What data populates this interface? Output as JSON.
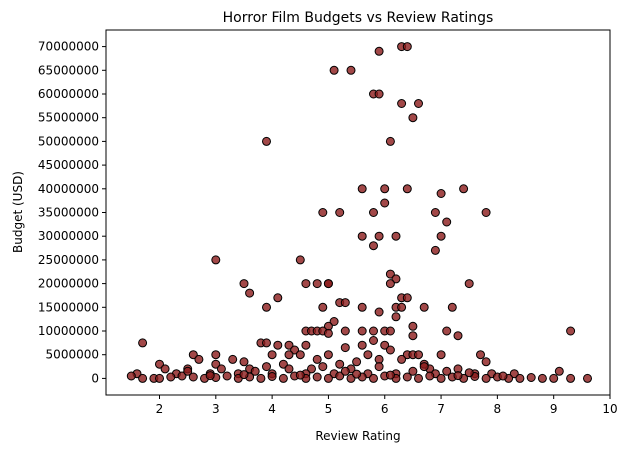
{
  "chart_data": {
    "type": "scatter",
    "title": "Horror Film Budgets vs Review Ratings",
    "xlabel": "Review Rating",
    "ylabel": "Budget (USD)",
    "xlim": [
      1.05,
      10.0
    ],
    "ylim": [
      -3500000,
      73500000
    ],
    "xticks": [
      2,
      3,
      4,
      5,
      6,
      7,
      8,
      9,
      10
    ],
    "xtick_labels": [
      "2",
      "3",
      "4",
      "5",
      "6",
      "7",
      "8",
      "9",
      "10"
    ],
    "yticks": [
      0,
      5000000,
      10000000,
      15000000,
      20000000,
      25000000,
      30000000,
      35000000,
      40000000,
      45000000,
      50000000,
      55000000,
      60000000,
      65000000,
      70000000
    ],
    "ytick_labels": [
      "0",
      "5000000",
      "10000000",
      "15000000",
      "20000000",
      "25000000",
      "30000000",
      "35000000",
      "40000000",
      "45000000",
      "50000000",
      "55000000",
      "60000000",
      "65000000",
      "70000000"
    ],
    "grid": false,
    "legend": "none",
    "marker_color": "#8b1a1a",
    "marker_edge_color": "#000000",
    "points": [
      {
        "x": 6.3,
        "y": 70000000
      },
      {
        "x": 6.4,
        "y": 70000000
      },
      {
        "x": 5.9,
        "y": 69000000
      },
      {
        "x": 5.1,
        "y": 65000000
      },
      {
        "x": 5.4,
        "y": 65000000
      },
      {
        "x": 5.8,
        "y": 60000000
      },
      {
        "x": 5.9,
        "y": 60000000
      },
      {
        "x": 6.3,
        "y": 58000000
      },
      {
        "x": 6.6,
        "y": 58000000
      },
      {
        "x": 6.5,
        "y": 55000000
      },
      {
        "x": 3.9,
        "y": 50000000
      },
      {
        "x": 6.1,
        "y": 50000000
      },
      {
        "x": 5.6,
        "y": 40000000
      },
      {
        "x": 6.0,
        "y": 40000000
      },
      {
        "x": 6.4,
        "y": 40000000
      },
      {
        "x": 7.4,
        "y": 40000000
      },
      {
        "x": 7.0,
        "y": 39000000
      },
      {
        "x": 6.0,
        "y": 37000000
      },
      {
        "x": 4.9,
        "y": 35000000
      },
      {
        "x": 5.2,
        "y": 35000000
      },
      {
        "x": 5.8,
        "y": 35000000
      },
      {
        "x": 6.9,
        "y": 35000000
      },
      {
        "x": 7.8,
        "y": 35000000
      },
      {
        "x": 7.1,
        "y": 33000000
      },
      {
        "x": 5.6,
        "y": 30000000
      },
      {
        "x": 5.9,
        "y": 30000000
      },
      {
        "x": 6.2,
        "y": 30000000
      },
      {
        "x": 7.0,
        "y": 30000000
      },
      {
        "x": 5.8,
        "y": 28000000
      },
      {
        "x": 6.9,
        "y": 27000000
      },
      {
        "x": 3.0,
        "y": 25000000
      },
      {
        "x": 4.5,
        "y": 25000000
      },
      {
        "x": 6.1,
        "y": 22000000
      },
      {
        "x": 6.2,
        "y": 21000000
      },
      {
        "x": 3.5,
        "y": 20000000
      },
      {
        "x": 4.6,
        "y": 20000000
      },
      {
        "x": 4.8,
        "y": 20000000
      },
      {
        "x": 5.0,
        "y": 20000000
      },
      {
        "x": 5.0,
        "y": 20000000
      },
      {
        "x": 6.1,
        "y": 20000000
      },
      {
        "x": 7.5,
        "y": 20000000
      },
      {
        "x": 3.6,
        "y": 18000000
      },
      {
        "x": 4.1,
        "y": 17000000
      },
      {
        "x": 6.3,
        "y": 17000000
      },
      {
        "x": 6.4,
        "y": 17000000
      },
      {
        "x": 5.2,
        "y": 16000000
      },
      {
        "x": 5.3,
        "y": 16000000
      },
      {
        "x": 3.9,
        "y": 15000000
      },
      {
        "x": 4.9,
        "y": 15000000
      },
      {
        "x": 5.6,
        "y": 15000000
      },
      {
        "x": 6.2,
        "y": 15000000
      },
      {
        "x": 6.3,
        "y": 15000000
      },
      {
        "x": 6.7,
        "y": 15000000
      },
      {
        "x": 7.2,
        "y": 15000000
      },
      {
        "x": 5.9,
        "y": 14000000
      },
      {
        "x": 6.2,
        "y": 13000000
      },
      {
        "x": 5.1,
        "y": 12000000
      },
      {
        "x": 5.0,
        "y": 11000000
      },
      {
        "x": 6.5,
        "y": 11000000
      },
      {
        "x": 4.6,
        "y": 10000000
      },
      {
        "x": 4.7,
        "y": 10000000
      },
      {
        "x": 4.8,
        "y": 10000000
      },
      {
        "x": 4.9,
        "y": 10000000
      },
      {
        "x": 5.3,
        "y": 10000000
      },
      {
        "x": 5.6,
        "y": 10000000
      },
      {
        "x": 5.8,
        "y": 10000000
      },
      {
        "x": 6.0,
        "y": 10000000
      },
      {
        "x": 6.1,
        "y": 10000000
      },
      {
        "x": 7.1,
        "y": 10000000
      },
      {
        "x": 9.3,
        "y": 10000000
      },
      {
        "x": 5.0,
        "y": 9500000
      },
      {
        "x": 6.5,
        "y": 9000000
      },
      {
        "x": 7.3,
        "y": 9000000
      },
      {
        "x": 3.8,
        "y": 7500000
      },
      {
        "x": 3.9,
        "y": 7500000
      },
      {
        "x": 1.7,
        "y": 7500000
      },
      {
        "x": 4.1,
        "y": 7000000
      },
      {
        "x": 4.3,
        "y": 7000000
      },
      {
        "x": 4.6,
        "y": 7000000
      },
      {
        "x": 5.6,
        "y": 7000000
      },
      {
        "x": 6.0,
        "y": 7000000
      },
      {
        "x": 5.3,
        "y": 6500000
      },
      {
        "x": 5.8,
        "y": 8000000
      },
      {
        "x": 6.1,
        "y": 6000000
      },
      {
        "x": 4.4,
        "y": 6000000
      },
      {
        "x": 2.6,
        "y": 5000000
      },
      {
        "x": 3.0,
        "y": 5000000
      },
      {
        "x": 4.0,
        "y": 5000000
      },
      {
        "x": 4.3,
        "y": 5000000
      },
      {
        "x": 4.5,
        "y": 5000000
      },
      {
        "x": 5.0,
        "y": 5000000
      },
      {
        "x": 5.7,
        "y": 5000000
      },
      {
        "x": 6.4,
        "y": 5000000
      },
      {
        "x": 6.5,
        "y": 5000000
      },
      {
        "x": 6.6,
        "y": 5000000
      },
      {
        "x": 7.0,
        "y": 5000000
      },
      {
        "x": 7.7,
        "y": 5000000
      },
      {
        "x": 2.7,
        "y": 4000000
      },
      {
        "x": 3.3,
        "y": 4000000
      },
      {
        "x": 4.8,
        "y": 4000000
      },
      {
        "x": 5.9,
        "y": 4000000
      },
      {
        "x": 6.3,
        "y": 4000000
      },
      {
        "x": 7.8,
        "y": 3500000
      },
      {
        "x": 3.5,
        "y": 3500000
      },
      {
        "x": 5.5,
        "y": 3500000
      },
      {
        "x": 3.0,
        "y": 3000000
      },
      {
        "x": 2.0,
        "y": 3000000
      },
      {
        "x": 4.2,
        "y": 3000000
      },
      {
        "x": 5.2,
        "y": 3000000
      },
      {
        "x": 6.7,
        "y": 3000000
      },
      {
        "x": 2.1,
        "y": 2000000
      },
      {
        "x": 2.5,
        "y": 2000000
      },
      {
        "x": 3.6,
        "y": 2000000
      },
      {
        "x": 4.7,
        "y": 2000000
      },
      {
        "x": 5.4,
        "y": 2000000
      },
      {
        "x": 6.8,
        "y": 2000000
      },
      {
        "x": 7.3,
        "y": 2000000
      },
      {
        "x": 9.1,
        "y": 1500000
      },
      {
        "x": 1.6,
        "y": 1000000
      },
      {
        "x": 2.3,
        "y": 1000000
      },
      {
        "x": 2.9,
        "y": 1000000
      },
      {
        "x": 3.4,
        "y": 1000000
      },
      {
        "x": 4.0,
        "y": 1000000
      },
      {
        "x": 4.6,
        "y": 1000000
      },
      {
        "x": 5.1,
        "y": 1000000
      },
      {
        "x": 5.7,
        "y": 1000000
      },
      {
        "x": 6.2,
        "y": 1000000
      },
      {
        "x": 6.9,
        "y": 1000000
      },
      {
        "x": 7.6,
        "y": 1000000
      },
      {
        "x": 7.9,
        "y": 1000000
      },
      {
        "x": 8.3,
        "y": 1000000
      },
      {
        "x": 1.5,
        "y": 500000
      },
      {
        "x": 1.7,
        "y": 0
      },
      {
        "x": 1.9,
        "y": 0
      },
      {
        "x": 2.0,
        "y": 0
      },
      {
        "x": 2.2,
        "y": 300000
      },
      {
        "x": 2.4,
        "y": 500000
      },
      {
        "x": 2.6,
        "y": 300000
      },
      {
        "x": 2.8,
        "y": 0
      },
      {
        "x": 3.0,
        "y": 200000
      },
      {
        "x": 3.2,
        "y": 500000
      },
      {
        "x": 3.4,
        "y": 0
      },
      {
        "x": 3.6,
        "y": 300000
      },
      {
        "x": 3.8,
        "y": 0
      },
      {
        "x": 4.0,
        "y": 400000
      },
      {
        "x": 4.2,
        "y": 0
      },
      {
        "x": 4.4,
        "y": 500000
      },
      {
        "x": 4.6,
        "y": 0
      },
      {
        "x": 4.8,
        "y": 300000
      },
      {
        "x": 5.0,
        "y": 0
      },
      {
        "x": 5.2,
        "y": 500000
      },
      {
        "x": 5.4,
        "y": 0
      },
      {
        "x": 5.6,
        "y": 300000
      },
      {
        "x": 5.8,
        "y": 0
      },
      {
        "x": 6.0,
        "y": 500000
      },
      {
        "x": 6.2,
        "y": 0
      },
      {
        "x": 6.4,
        "y": 300000
      },
      {
        "x": 6.6,
        "y": 0
      },
      {
        "x": 6.8,
        "y": 500000
      },
      {
        "x": 7.0,
        "y": 0
      },
      {
        "x": 7.2,
        "y": 300000
      },
      {
        "x": 7.4,
        "y": 0
      },
      {
        "x": 7.6,
        "y": 400000
      },
      {
        "x": 7.8,
        "y": 0
      },
      {
        "x": 8.0,
        "y": 300000
      },
      {
        "x": 8.2,
        "y": 0
      },
      {
        "x": 8.4,
        "y": 0
      },
      {
        "x": 8.6,
        "y": 200000
      },
      {
        "x": 8.8,
        "y": 0
      },
      {
        "x": 9.0,
        "y": 0
      },
      {
        "x": 9.3,
        "y": 0
      },
      {
        "x": 9.6,
        "y": 0
      },
      {
        "x": 2.5,
        "y": 1500000
      },
      {
        "x": 3.1,
        "y": 2000000
      },
      {
        "x": 3.9,
        "y": 2500000
      },
      {
        "x": 4.3,
        "y": 2000000
      },
      {
        "x": 5.3,
        "y": 1500000
      },
      {
        "x": 5.9,
        "y": 2500000
      },
      {
        "x": 6.5,
        "y": 1500000
      },
      {
        "x": 7.1,
        "y": 1500000
      },
      {
        "x": 8.1,
        "y": 500000
      },
      {
        "x": 3.7,
        "y": 1500000
      },
      {
        "x": 4.9,
        "y": 2500000
      },
      {
        "x": 6.7,
        "y": 2500000
      },
      {
        "x": 2.9,
        "y": 600000
      },
      {
        "x": 3.5,
        "y": 800000
      },
      {
        "x": 4.5,
        "y": 700000
      },
      {
        "x": 5.5,
        "y": 900000
      },
      {
        "x": 6.1,
        "y": 700000
      },
      {
        "x": 7.3,
        "y": 600000
      },
      {
        "x": 7.5,
        "y": 1200000
      }
    ]
  }
}
